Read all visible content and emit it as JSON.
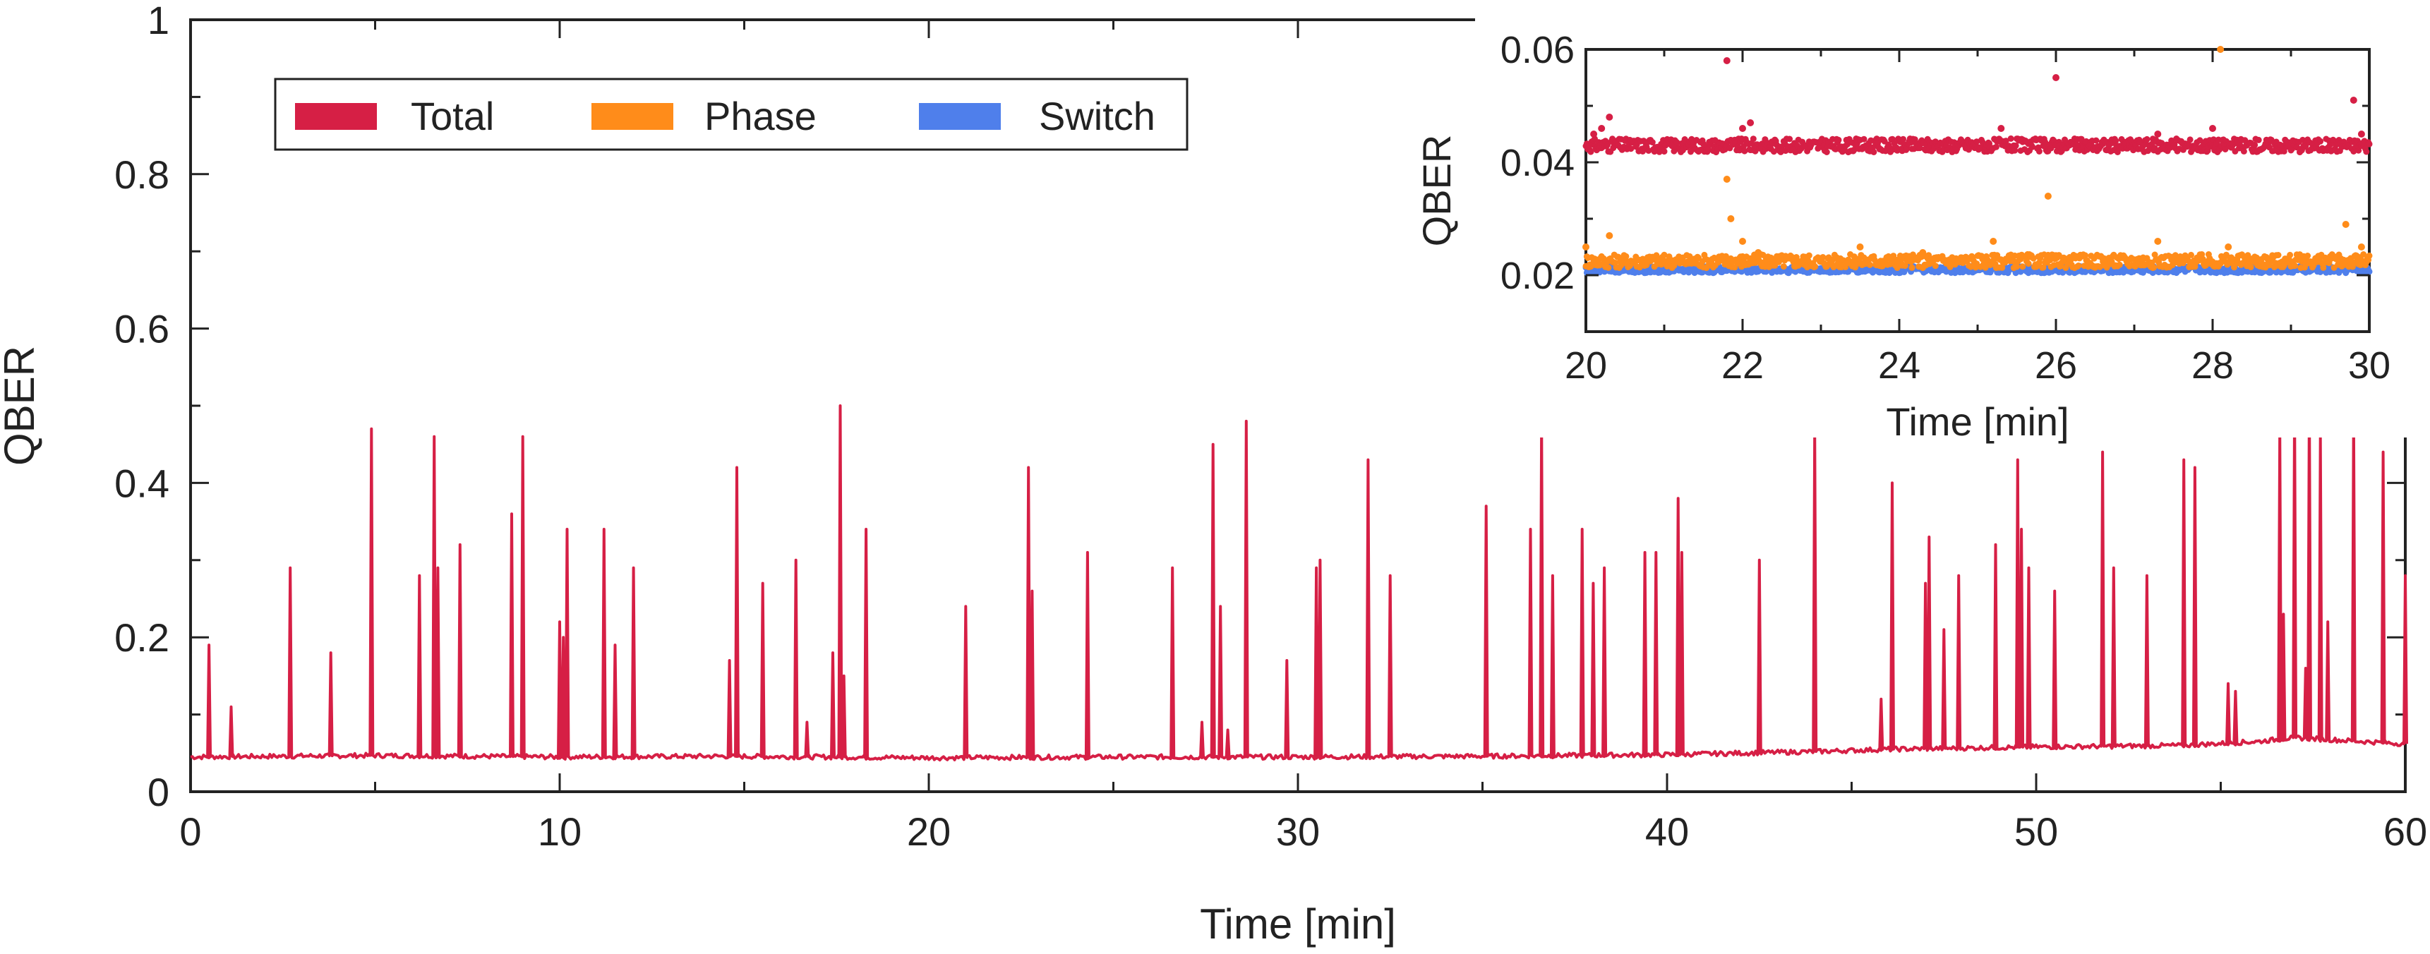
{
  "chart_data": [
    {
      "type": "line",
      "xlabel": "Time [min]",
      "ylabel": "QBER",
      "xlim": [
        0,
        60
      ],
      "ylim": [
        0,
        1
      ],
      "xticks": [
        0,
        10,
        20,
        30,
        40,
        50,
        60
      ],
      "xtick_labels": [
        "0",
        "10",
        "20",
        "30",
        "40",
        "50",
        "60"
      ],
      "yticks": [
        0,
        0.2,
        0.4,
        0.6,
        0.8,
        1
      ],
      "ytick_labels": [
        "0",
        "0.2",
        "0.4",
        "0.6",
        "0.8",
        "1"
      ],
      "grid": false,
      "legend": {
        "placement": "top-left",
        "entries": [
          {
            "label": "Total",
            "color": "#D61F45"
          },
          {
            "label": "Phase",
            "color": "#FF8C1A"
          },
          {
            "label": "Switch",
            "color": "#4F7FEB"
          }
        ]
      },
      "series": [
        {
          "name": "Total",
          "color": "#D61F45",
          "baseline": [
            [
              0,
              0.045
            ],
            [
              5,
              0.047
            ],
            [
              10,
              0.045
            ],
            [
              14.5,
              0.046
            ],
            [
              20,
              0.044
            ],
            [
              25,
              0.045
            ],
            [
              30,
              0.045
            ],
            [
              35,
              0.046
            ],
            [
              40,
              0.048
            ],
            [
              44,
              0.052
            ],
            [
              46,
              0.055
            ],
            [
              50,
              0.058
            ],
            [
              54,
              0.06
            ],
            [
              56,
              0.065
            ],
            [
              57,
              0.07
            ],
            [
              60,
              0.062
            ]
          ],
          "spikes": [
            [
              0.5,
              0.19
            ],
            [
              1.1,
              0.11
            ],
            [
              2.7,
              0.29
            ],
            [
              3.8,
              0.18
            ],
            [
              4.9,
              0.47
            ],
            [
              6.2,
              0.28
            ],
            [
              6.6,
              0.46
            ],
            [
              6.7,
              0.29
            ],
            [
              7.3,
              0.32
            ],
            [
              8.7,
              0.36
            ],
            [
              9.0,
              0.46
            ],
            [
              10.0,
              0.22
            ],
            [
              10.1,
              0.2
            ],
            [
              10.2,
              0.34
            ],
            [
              11.2,
              0.34
            ],
            [
              11.5,
              0.19
            ],
            [
              12.0,
              0.29
            ],
            [
              14.6,
              0.17
            ],
            [
              14.8,
              0.42
            ],
            [
              15.5,
              0.27
            ],
            [
              16.4,
              0.3
            ],
            [
              16.7,
              0.09
            ],
            [
              17.4,
              0.18
            ],
            [
              17.6,
              0.5
            ],
            [
              17.7,
              0.15
            ],
            [
              18.3,
              0.34
            ],
            [
              21.0,
              0.24
            ],
            [
              22.7,
              0.42
            ],
            [
              22.8,
              0.26
            ],
            [
              24.3,
              0.31
            ],
            [
              26.6,
              0.29
            ],
            [
              27.4,
              0.09
            ],
            [
              27.7,
              0.45
            ],
            [
              27.9,
              0.24
            ],
            [
              28.1,
              0.08
            ],
            [
              28.6,
              0.48
            ],
            [
              29.7,
              0.17
            ],
            [
              30.5,
              0.29
            ],
            [
              30.6,
              0.3
            ],
            [
              31.9,
              0.43
            ],
            [
              32.5,
              0.28
            ],
            [
              35.1,
              0.37
            ],
            [
              36.3,
              0.34
            ],
            [
              36.6,
              0.48
            ],
            [
              36.9,
              0.28
            ],
            [
              37.7,
              0.34
            ],
            [
              38.0,
              0.27
            ],
            [
              38.3,
              0.29
            ],
            [
              39.4,
              0.31
            ],
            [
              39.7,
              0.31
            ],
            [
              40.3,
              0.38
            ],
            [
              40.4,
              0.31
            ],
            [
              42.5,
              0.3
            ],
            [
              44.0,
              0.47
            ],
            [
              45.8,
              0.12
            ],
            [
              46.1,
              0.4
            ],
            [
              47.0,
              0.27
            ],
            [
              47.1,
              0.33
            ],
            [
              47.5,
              0.21
            ],
            [
              47.9,
              0.28
            ],
            [
              48.9,
              0.32
            ],
            [
              49.5,
              0.43
            ],
            [
              49.6,
              0.34
            ],
            [
              49.8,
              0.29
            ],
            [
              50.5,
              0.26
            ],
            [
              51.8,
              0.44
            ],
            [
              52.1,
              0.29
            ],
            [
              53.0,
              0.28
            ],
            [
              54.0,
              0.43
            ],
            [
              54.3,
              0.42
            ],
            [
              55.2,
              0.14
            ],
            [
              55.4,
              0.13
            ],
            [
              56.6,
              0.47
            ],
            [
              56.7,
              0.23
            ],
            [
              57.0,
              0.5
            ],
            [
              57.3,
              0.16
            ],
            [
              57.4,
              0.51
            ],
            [
              57.7,
              0.46
            ],
            [
              57.9,
              0.22
            ],
            [
              58.6,
              0.49
            ],
            [
              59.4,
              0.44
            ],
            [
              60.0,
              0.28
            ]
          ]
        }
      ]
    },
    {
      "type": "scatter",
      "placement": "inset-top-right",
      "xlabel": "Time [min]",
      "ylabel": "QBER",
      "xlim": [
        20,
        30
      ],
      "ylim": [
        0.01,
        0.06
      ],
      "xticks": [
        20,
        22,
        24,
        26,
        28,
        30
      ],
      "xtick_labels": [
        "20",
        "22",
        "24",
        "26",
        "28",
        "30"
      ],
      "yticks": [
        0.02,
        0.04,
        0.06
      ],
      "ytick_labels": [
        "0.02",
        "0.04",
        "0.06"
      ],
      "series": [
        {
          "name": "Total",
          "color": "#D61F45",
          "typical": 0.043,
          "outliers": [
            [
              20.1,
              0.045
            ],
            [
              20.3,
              0.048
            ],
            [
              20.2,
              0.046
            ],
            [
              21.8,
              0.058
            ],
            [
              22.0,
              0.046
            ],
            [
              22.1,
              0.047
            ],
            [
              25.3,
              0.046
            ],
            [
              26.0,
              0.055
            ],
            [
              27.3,
              0.045
            ],
            [
              28.0,
              0.046
            ],
            [
              29.8,
              0.051
            ],
            [
              29.9,
              0.045
            ]
          ]
        },
        {
          "name": "Phase",
          "color": "#FF8C1A",
          "typical": 0.0225,
          "outliers": [
            [
              20.0,
              0.025
            ],
            [
              20.3,
              0.027
            ],
            [
              21.8,
              0.037
            ],
            [
              21.85,
              0.03
            ],
            [
              22.0,
              0.026
            ],
            [
              22.2,
              0.024
            ],
            [
              23.5,
              0.025
            ],
            [
              24.3,
              0.024
            ],
            [
              25.2,
              0.026
            ],
            [
              25.9,
              0.034
            ],
            [
              27.3,
              0.026
            ],
            [
              28.1,
              0.06
            ],
            [
              28.2,
              0.025
            ],
            [
              29.7,
              0.029
            ],
            [
              29.9,
              0.025
            ]
          ]
        },
        {
          "name": "Switch",
          "color": "#4F7FEB",
          "typical": 0.021
        }
      ]
    }
  ]
}
